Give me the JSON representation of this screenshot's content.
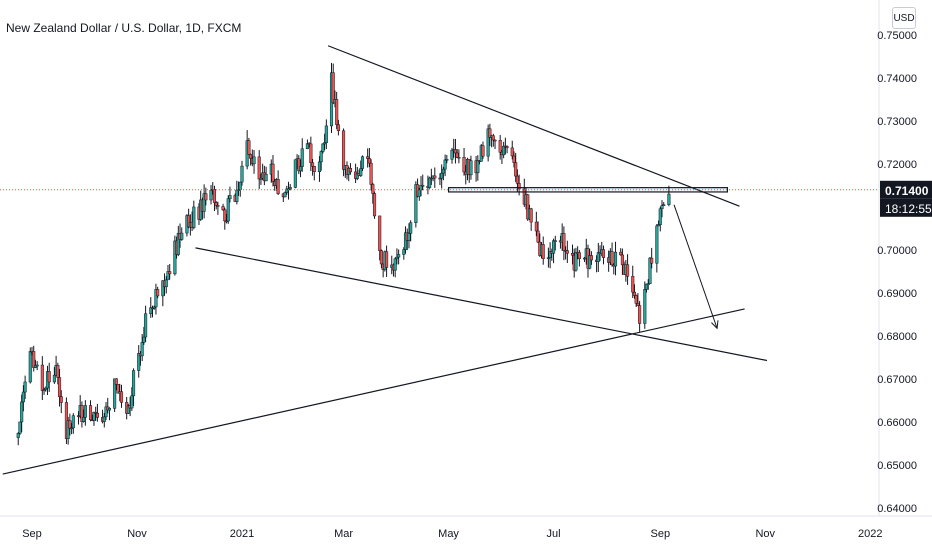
{
  "chart_title": "New Zealand Dollar / U.S. Dollar, 1D, FXCM",
  "currency_button": "USD",
  "last_price_label": "0.71400",
  "countdown_label": "18:12:55",
  "colors": {
    "up": "#26a69a",
    "down": "#ef5350",
    "body": "#131722",
    "last_price": "#ef5350",
    "tag_bg": "#131722"
  },
  "chart_data": {
    "type": "candlestick",
    "title": "New Zealand Dollar / U.S. Dollar, 1D, FXCM",
    "symbol": "NZDUSD",
    "interval": "1D",
    "source": "FXCM",
    "currency": "USD",
    "y_ticks": [
      "0.75000",
      "0.74000",
      "0.73000",
      "0.72000",
      "0.71400",
      "0.70000",
      "0.69000",
      "0.68000",
      "0.67000",
      "0.66000",
      "0.65000",
      "0.64000"
    ],
    "ylim": [
      0.64,
      0.751
    ],
    "x_ticks": [
      "Sep",
      "Nov",
      "2021",
      "Mar",
      "May",
      "Jul",
      "Sep",
      "Nov",
      "2022"
    ],
    "x_tick_dates": [
      "2020-09-01",
      "2020-11-01",
      "2021-01-01",
      "2021-03-01",
      "2021-05-01",
      "2021-07-01",
      "2021-09-01",
      "2021-11-01",
      "2022-01-01"
    ],
    "last_price": 0.714,
    "countdown": "18:12:55",
    "anchors": [
      [
        "2020-08-24",
        0.659
      ],
      [
        "2020-08-31",
        0.675
      ],
      [
        "2020-09-07",
        0.668
      ],
      [
        "2020-09-14",
        0.673
      ],
      [
        "2020-09-21",
        0.658
      ],
      [
        "2020-09-28",
        0.663
      ],
      [
        "2020-10-05",
        0.661
      ],
      [
        "2020-10-12",
        0.659
      ],
      [
        "2020-10-19",
        0.669
      ],
      [
        "2020-10-26",
        0.661
      ],
      [
        "2020-11-02",
        0.676
      ],
      [
        "2020-11-09",
        0.688
      ],
      [
        "2020-11-16",
        0.691
      ],
      [
        "2020-11-23",
        0.7
      ],
      [
        "2020-11-30",
        0.706
      ],
      [
        "2020-12-07",
        0.709
      ],
      [
        "2020-12-14",
        0.713
      ],
      [
        "2020-12-21",
        0.708
      ],
      [
        "2020-12-28",
        0.712
      ],
      [
        "2021-01-04",
        0.725
      ],
      [
        "2021-01-11",
        0.715
      ],
      [
        "2021-01-18",
        0.719
      ],
      [
        "2021-01-25",
        0.713
      ],
      [
        "2021-02-01",
        0.72
      ],
      [
        "2021-02-08",
        0.723
      ],
      [
        "2021-02-15",
        0.718
      ],
      [
        "2021-02-22",
        0.739
      ],
      [
        "2021-03-01",
        0.721
      ],
      [
        "2021-03-08",
        0.717
      ],
      [
        "2021-03-15",
        0.721
      ],
      [
        "2021-03-22",
        0.698
      ],
      [
        "2021-03-29",
        0.697
      ],
      [
        "2021-04-05",
        0.701
      ],
      [
        "2021-04-12",
        0.713
      ],
      [
        "2021-04-19",
        0.717
      ],
      [
        "2021-04-26",
        0.716
      ],
      [
        "2021-05-03",
        0.723
      ],
      [
        "2021-05-10",
        0.719
      ],
      [
        "2021-05-17",
        0.719
      ],
      [
        "2021-05-24",
        0.727
      ],
      [
        "2021-05-31",
        0.725
      ],
      [
        "2021-06-07",
        0.72
      ],
      [
        "2021-06-14",
        0.712
      ],
      [
        "2021-06-21",
        0.702
      ],
      [
        "2021-06-28",
        0.698
      ],
      [
        "2021-07-05",
        0.704
      ],
      [
        "2021-07-12",
        0.697
      ],
      [
        "2021-07-19",
        0.698
      ],
      [
        "2021-07-26",
        0.697
      ],
      [
        "2021-08-02",
        0.699
      ],
      [
        "2021-08-09",
        0.698
      ],
      [
        "2021-08-16",
        0.69
      ],
      [
        "2021-08-20",
        0.685
      ],
      [
        "2021-08-23",
        0.69
      ],
      [
        "2021-08-30",
        0.705
      ],
      [
        "2021-09-06",
        0.713
      ]
    ],
    "drawings": {
      "upper_trendline": [
        [
          "2021-02-20",
          0.7475
        ],
        [
          "2021-10-17",
          0.7102
        ]
      ],
      "lower_trendline": [
        [
          "2020-12-05",
          0.7005
        ],
        [
          "2021-11-02",
          0.6743
        ]
      ],
      "rising_support": [
        [
          "2020-08-15",
          0.6479
        ],
        [
          "2021-10-20",
          0.6863
        ]
      ],
      "resistance_zone": [
        [
          "2021-05-01",
          0.7145
        ],
        [
          "2021-10-10",
          0.7135
        ]
      ],
      "projection_arrow": [
        [
          "2021-09-09",
          0.7105
        ],
        [
          "2021-10-04",
          0.6818
        ]
      ]
    }
  }
}
